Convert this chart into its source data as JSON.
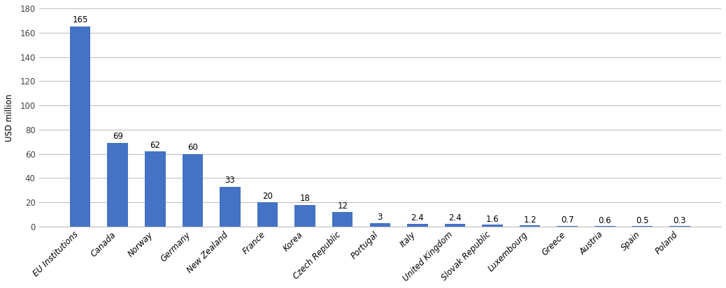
{
  "categories": [
    "EU Institutions",
    "Canada",
    "Norway",
    "Germany",
    "New Zealand",
    "France",
    "Korea",
    "Czech Republic",
    "Portugal",
    "Italy",
    "United Kingdom",
    "Slovak Republic",
    "Luxembourg",
    "Greece",
    "Austria",
    "Spain",
    "Poland"
  ],
  "values": [
    165,
    69,
    62,
    60,
    33,
    20,
    18,
    12,
    3,
    2.4,
    2.4,
    1.6,
    1.2,
    0.7,
    0.6,
    0.5,
    0.3
  ],
  "labels": [
    "165",
    "69",
    "62",
    "60",
    "33",
    "20",
    "18",
    "12",
    "3",
    "2.4",
    "2.4",
    "1.6",
    "1.2",
    "0.7",
    "0.6",
    "0.5",
    "0.3"
  ],
  "bar_color": "#4472c4",
  "ylabel": "USD million",
  "ylim": [
    0,
    180
  ],
  "yticks": [
    0,
    20,
    40,
    60,
    80,
    100,
    120,
    140,
    160,
    180
  ],
  "background_color": "#ffffff",
  "grid_color": "#c0c0c0",
  "label_fontsize": 8.5,
  "tick_fontsize": 8.5,
  "bar_width": 0.55
}
